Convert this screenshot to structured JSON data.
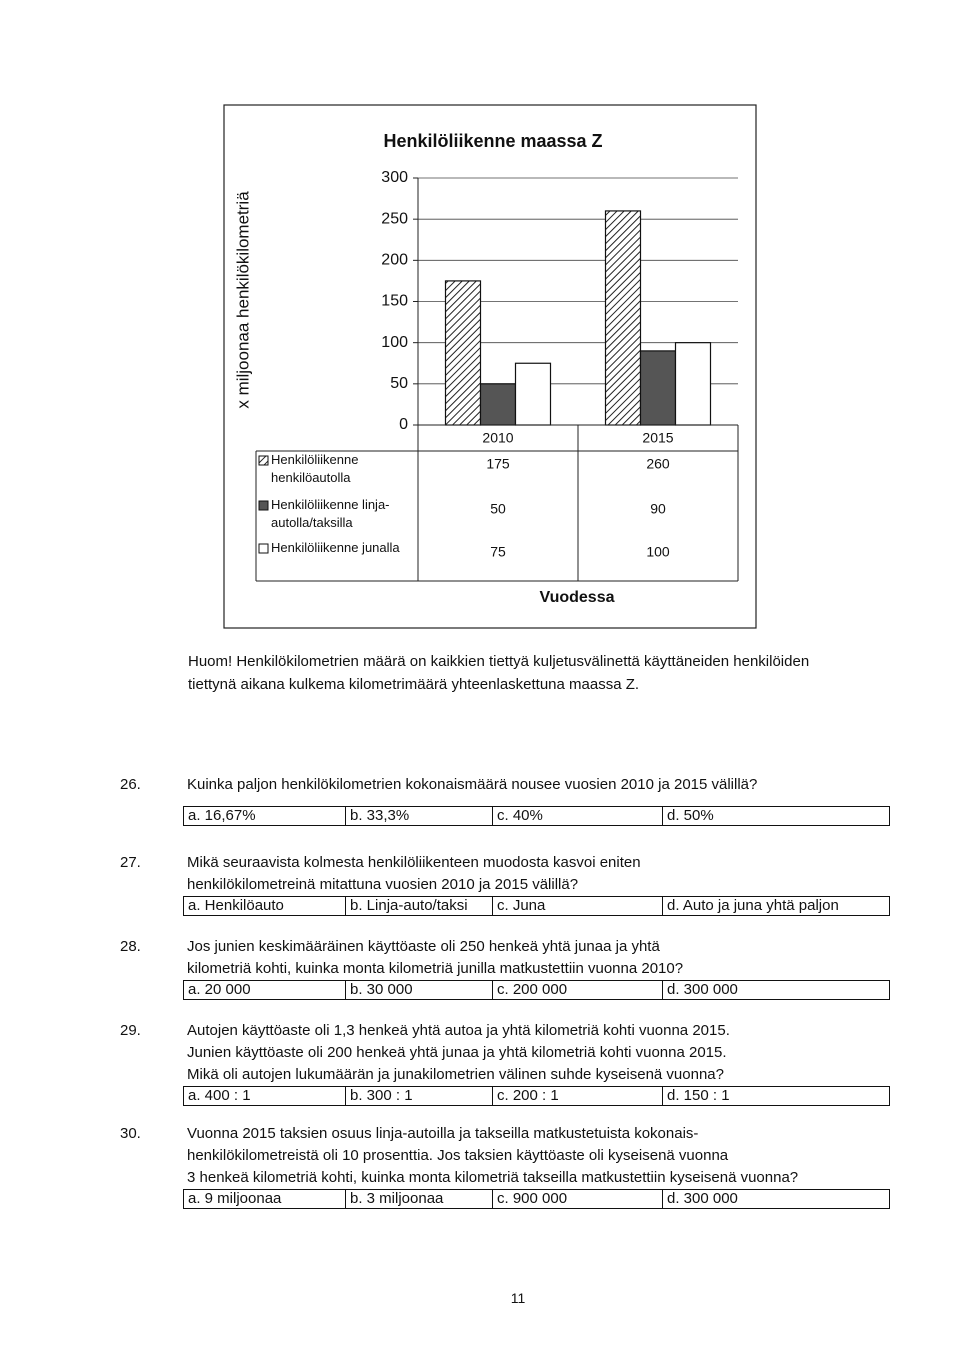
{
  "chart_data": {
    "type": "bar",
    "title": "Henkilöliikenne maassa Z",
    "ylabel": "x miljoonaa henkilökilometriä",
    "xlabel": "Vuodessa",
    "categories": [
      "2010",
      "2015"
    ],
    "series": [
      {
        "name": "Henkilöliikenne henkilöautolla",
        "color": "#ffffff",
        "hatch": true,
        "values": [
          175,
          260
        ]
      },
      {
        "name": "Henkilöliikenne linja-autolla/taksilla",
        "color": "#555555",
        "values": [
          50,
          90
        ]
      },
      {
        "name": "Henkilöliikenne junalla",
        "color": "#ffffff",
        "values": [
          75,
          100
        ]
      }
    ],
    "ylim": [
      0,
      300
    ],
    "yticks": [
      0,
      50,
      100,
      150,
      200,
      250,
      300
    ],
    "grid": true
  },
  "note": [
    "Huom! Henkilökilometrien määrä on kaikkien tiettyä kuljetusvälinettä käyttäneiden henkilöiden",
    "tiettynä aikana kulkema kilometrimäärä yhteenlaskettuna maassa Z."
  ],
  "questions": [
    {
      "number": "26.",
      "lines": [
        "Kuinka paljon henkilökilometrien kokonaismäärä nousee vuosien 2010 ja 2015 välillä?"
      ],
      "options": [
        "a. 16,67%",
        "b. 33,3%",
        "c. 40%",
        "d. 50%"
      ]
    },
    {
      "number": "27.",
      "lines": [
        "Mikä seuraavista kolmesta henkilöliikenteen muodosta kasvoi eniten",
        "henkilökilometreinä mitattuna vuosien 2010 ja 2015 välillä?"
      ],
      "options": [
        "a. Henkilöauto",
        "b. Linja-auto/taksi",
        "c. Juna",
        "d. Auto ja juna yhtä paljon"
      ]
    },
    {
      "number": "28.",
      "lines": [
        "Jos junien keskimääräinen käyttöaste oli 250 henkeä yhtä junaa ja yhtä",
        "kilometriä kohti, kuinka monta kilometriä junilla matkustettiin vuonna 2010?"
      ],
      "options": [
        "a. 20 000",
        "b. 30 000",
        "c. 200 000",
        "d. 300 000"
      ]
    },
    {
      "number": "29.",
      "lines": [
        "Autojen käyttöaste oli 1,3 henkeä yhtä autoa ja yhtä kilometriä kohti vuonna 2015.",
        "Junien käyttöaste oli 200 henkeä yhtä junaa ja yhtä kilometriä kohti vuonna 2015.",
        "Mikä oli autojen lukumäärän ja junakilometrien välinen suhde kyseisenä vuonna?"
      ],
      "options": [
        "a. 400 : 1",
        "b. 300 : 1",
        "c. 200 : 1",
        "d. 150 : 1"
      ]
    },
    {
      "number": "30.",
      "lines": [
        "Vuonna 2015 taksien osuus linja-autoilla ja takseilla matkustetuista kokonais-",
        "henkilökilometreistä oli 10 prosenttia. Jos taksien käyttöaste oli kyseisenä vuonna",
        "3 henkeä kilometriä kohti, kuinka monta kilometriä takseilla matkustettiin kyseisenä vuonna?"
      ],
      "options": [
        "a. 9 miljoonaa",
        "b. 3 miljoonaa",
        "c. 900 000",
        "d. 300 000"
      ]
    }
  ],
  "page_number": "11"
}
